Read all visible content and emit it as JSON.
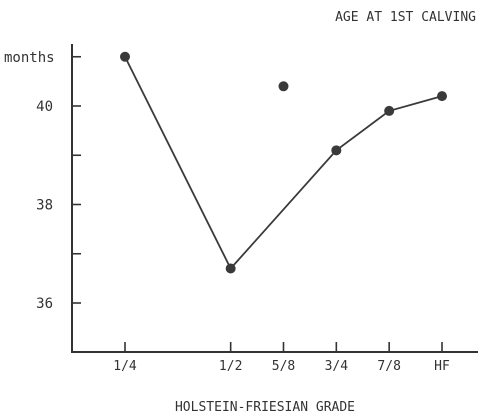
{
  "chart_data": {
    "type": "line",
    "title": "AGE AT 1ST CALVING",
    "xlabel": "HOLSTEIN-FRIESIAN GRADE",
    "ylabel": "months",
    "categories": [
      "1/4",
      "1/2",
      "5/8",
      "3/4",
      "7/8",
      "HF"
    ],
    "x": [
      0.25,
      0.5,
      0.625,
      0.75,
      0.875,
      1.0
    ],
    "ylim": [
      35,
      41
    ],
    "yticks": [
      36,
      37,
      38,
      39,
      40,
      41
    ],
    "ytick_labels": [
      "36",
      "",
      "38",
      "",
      "40",
      ""
    ],
    "grid": false,
    "series": [
      {
        "line": true,
        "x": [
          0.25,
          0.5,
          0.75,
          0.875,
          1.0
        ],
        "values": [
          41.0,
          36.7,
          39.1,
          39.9,
          40.2
        ]
      },
      {
        "line": false,
        "x": [
          0.625
        ],
        "values": [
          40.4
        ]
      }
    ]
  }
}
